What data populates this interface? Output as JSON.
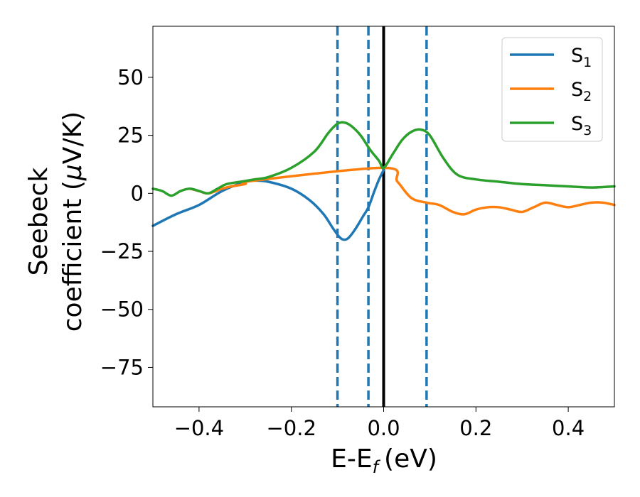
{
  "chart_data": {
    "type": "line",
    "xlabel": "E-E",
    "xlabel_sub": "f",
    "xlabel_unit": "(eV)",
    "ylabel_line1": "Seebeck",
    "ylabel_line2": "coefficient  (",
    "ylabel_mu": "μ",
    "ylabel_unit": "V/K)",
    "xlim": [
      -0.5,
      0.5
    ],
    "ylim": [
      -92,
      72
    ],
    "x_ticks": [
      -0.4,
      -0.2,
      0.0,
      0.2,
      0.4
    ],
    "x_tick_labels": [
      "−0.4",
      "−0.2",
      "0.0",
      "0.2",
      "0.4"
    ],
    "y_ticks": [
      50,
      25,
      0,
      -25,
      -50,
      -75
    ],
    "y_tick_labels": [
      "50",
      "25",
      "0",
      "−25",
      "−50",
      "−75"
    ],
    "grid": false,
    "legend_position": "top-right",
    "vertical_lines": [
      {
        "x": -0.1,
        "style": "dashed",
        "color": "#1f77b4"
      },
      {
        "x": -0.033,
        "style": "dashed",
        "color": "#1f77b4"
      },
      {
        "x": 0.0,
        "style": "solid",
        "color": "#000000"
      },
      {
        "x": 0.093,
        "style": "dashed",
        "color": "#1f77b4"
      }
    ],
    "series": [
      {
        "name": "S",
        "sub": "1",
        "color": "#1f77b4",
        "x": [
          -0.5,
          -0.45,
          -0.4,
          -0.35,
          -0.3,
          -0.28,
          -0.25,
          -0.2,
          -0.16,
          -0.13,
          -0.11,
          -0.095,
          -0.085,
          -0.075,
          -0.06,
          -0.045,
          -0.033,
          -0.02,
          -0.01,
          0.0
        ],
        "y": [
          -14,
          -9,
          -5,
          1,
          5,
          5.5,
          5,
          2,
          -3,
          -9,
          -15,
          -19,
          -20,
          -19,
          -15,
          -10,
          -6,
          1,
          6,
          10
        ]
      },
      {
        "name": "S",
        "sub": "2",
        "color": "#ff7f0e",
        "x": [
          -0.42,
          -0.4,
          -0.38,
          -0.35,
          -0.33,
          -0.3,
          -0.28,
          0.0,
          0.03,
          0.06,
          0.093,
          0.12,
          0.15,
          0.175,
          0.2,
          0.225,
          0.25,
          0.275,
          0.3,
          0.325,
          0.35,
          0.375,
          0.4,
          0.425,
          0.45,
          0.475,
          0.5
        ],
        "y": [
          2,
          1,
          0,
          2,
          3,
          4,
          5.5,
          11,
          5,
          -2,
          -4,
          -5,
          -8,
          -9,
          -7,
          -6,
          -6,
          -7,
          -8,
          -6,
          -4,
          -5,
          -6,
          -5,
          -4,
          -4,
          -5
        ]
      },
      {
        "name": "S",
        "sub": "3",
        "color": "#2ca02c",
        "x": [
          -0.5,
          -0.48,
          -0.46,
          -0.44,
          -0.42,
          -0.4,
          -0.38,
          -0.36,
          -0.34,
          -0.31,
          -0.28,
          -0.25,
          -0.2,
          -0.15,
          -0.12,
          -0.1,
          -0.085,
          -0.07,
          -0.05,
          -0.03,
          -0.01,
          0.0,
          0.02,
          0.04,
          0.06,
          0.08,
          0.1,
          0.13,
          0.16,
          0.2,
          0.25,
          0.3,
          0.35,
          0.4,
          0.45,
          0.5
        ],
        "y": [
          2,
          1,
          -1,
          1,
          2,
          1,
          0,
          2,
          4,
          5,
          6,
          7,
          11,
          18,
          26,
          30,
          30.5,
          29,
          25,
          19,
          14,
          11,
          17,
          23,
          26.5,
          27.5,
          25,
          15,
          8,
          6,
          5,
          4,
          3.5,
          3,
          2.5,
          3
        ]
      }
    ]
  }
}
